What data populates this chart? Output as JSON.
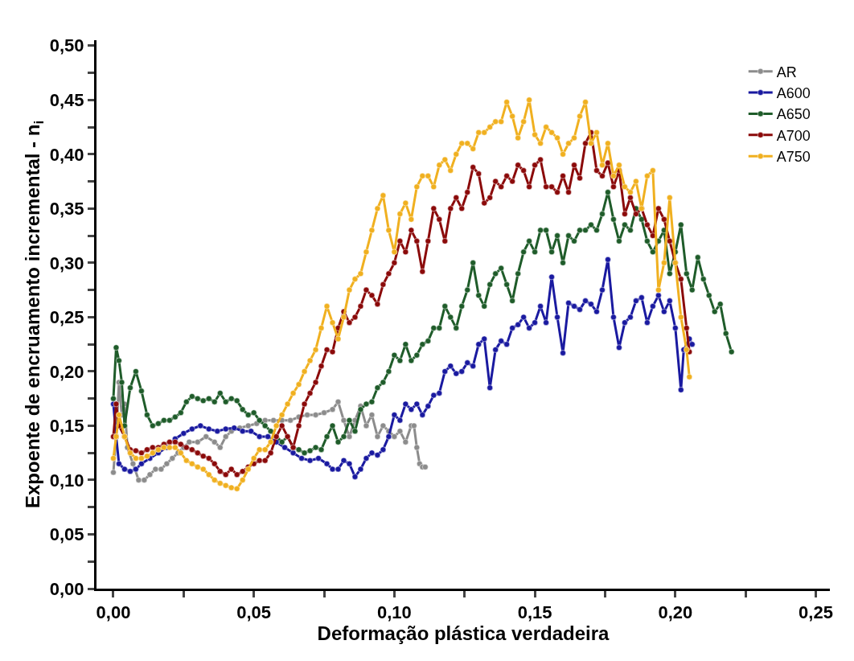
{
  "chart_data": {
    "type": "line",
    "xlabel": "Deformação plástica verdadeira",
    "ylabel": "Expoente de encruamento incremental - n$_{i}$",
    "xlim": [
      -0.006,
      0.255
    ],
    "ylim": [
      0,
      0.505
    ],
    "xticks": [
      {
        "value": 0,
        "label": "0,00"
      },
      {
        "value": 0.025,
        "label": null
      },
      {
        "value": 0.05,
        "label": "0,05"
      },
      {
        "value": 0.075,
        "label": null
      },
      {
        "value": 0.1,
        "label": "0,10"
      },
      {
        "value": 0.125,
        "label": null
      },
      {
        "value": 0.15,
        "label": "0,15"
      },
      {
        "value": 0.175,
        "label": null
      },
      {
        "value": 0.2,
        "label": "0,20"
      },
      {
        "value": 0.225,
        "label": null
      },
      {
        "value": 0.25,
        "label": "0,25"
      }
    ],
    "yticks": [
      {
        "value": 0,
        "label": "0,00"
      },
      {
        "value": 0.025,
        "label": null
      },
      {
        "value": 0.05,
        "label": "0,05"
      },
      {
        "value": 0.075,
        "label": null
      },
      {
        "value": 0.1,
        "label": "0,10"
      },
      {
        "value": 0.125,
        "label": null
      },
      {
        "value": 0.15,
        "label": "0,15"
      },
      {
        "value": 0.175,
        "label": null
      },
      {
        "value": 0.2,
        "label": "0,20"
      },
      {
        "value": 0.225,
        "label": null
      },
      {
        "value": 0.25,
        "label": "0,25"
      },
      {
        "value": 0.275,
        "label": null
      },
      {
        "value": 0.3,
        "label": "0,30"
      },
      {
        "value": 0.325,
        "label": null
      },
      {
        "value": 0.35,
        "label": "0,35"
      },
      {
        "value": 0.375,
        "label": null
      },
      {
        "value": 0.4,
        "label": "0,40"
      },
      {
        "value": 0.425,
        "label": null
      },
      {
        "value": 0.45,
        "label": "0,45"
      },
      {
        "value": 0.475,
        "label": null
      },
      {
        "value": 0.5,
        "label": "0,50"
      }
    ],
    "legend": "top right",
    "marker": "circle",
    "line_style": "solid",
    "series": [
      {
        "name": "AR",
        "color": "#8c8c8c",
        "x": [
          0.0,
          0.001,
          0.002,
          0.003,
          0.004,
          0.005,
          0.007,
          0.009,
          0.011,
          0.013,
          0.015,
          0.017,
          0.019,
          0.021,
          0.023,
          0.025,
          0.027,
          0.03,
          0.033,
          0.036,
          0.038,
          0.04,
          0.042,
          0.045,
          0.048,
          0.051,
          0.054,
          0.057,
          0.06,
          0.063,
          0.066,
          0.069,
          0.072,
          0.075,
          0.078,
          0.08,
          0.082,
          0.084,
          0.086,
          0.088,
          0.09,
          0.092,
          0.094,
          0.096,
          0.098,
          0.1,
          0.102,
          0.104,
          0.106,
          0.107,
          0.108,
          0.109,
          0.11,
          0.111
        ],
        "values": [
          0.107,
          0.14,
          0.19,
          0.16,
          0.17,
          0.13,
          0.115,
          0.1,
          0.1,
          0.105,
          0.11,
          0.11,
          0.115,
          0.12,
          0.125,
          0.13,
          0.135,
          0.135,
          0.14,
          0.135,
          0.13,
          0.14,
          0.145,
          0.148,
          0.15,
          0.152,
          0.155,
          0.155,
          0.155,
          0.155,
          0.158,
          0.16,
          0.16,
          0.162,
          0.165,
          0.172,
          0.155,
          0.14,
          0.155,
          0.168,
          0.15,
          0.16,
          0.14,
          0.15,
          0.145,
          0.14,
          0.145,
          0.135,
          0.15,
          0.15,
          0.13,
          0.115,
          0.112,
          0.112
        ]
      },
      {
        "name": "A600",
        "color": "#1a1aa0",
        "x": [
          0.0,
          0.001,
          0.002,
          0.004,
          0.006,
          0.008,
          0.01,
          0.013,
          0.016,
          0.019,
          0.022,
          0.025,
          0.028,
          0.031,
          0.034,
          0.037,
          0.04,
          0.043,
          0.046,
          0.049,
          0.052,
          0.055,
          0.058,
          0.061,
          0.064,
          0.067,
          0.07,
          0.073,
          0.076,
          0.078,
          0.08,
          0.082,
          0.084,
          0.086,
          0.088,
          0.09,
          0.092,
          0.094,
          0.096,
          0.098,
          0.1,
          0.102,
          0.104,
          0.106,
          0.108,
          0.11,
          0.112,
          0.114,
          0.116,
          0.118,
          0.12,
          0.122,
          0.124,
          0.126,
          0.128,
          0.13,
          0.132,
          0.134,
          0.136,
          0.138,
          0.14,
          0.142,
          0.144,
          0.146,
          0.148,
          0.15,
          0.152,
          0.154,
          0.156,
          0.158,
          0.16,
          0.162,
          0.164,
          0.166,
          0.168,
          0.17,
          0.172,
          0.174,
          0.176,
          0.178,
          0.18,
          0.182,
          0.184,
          0.186,
          0.188,
          0.19,
          0.192,
          0.194,
          0.196,
          0.198,
          0.2,
          0.202,
          0.203,
          0.205,
          0.206
        ],
        "values": [
          0.17,
          0.14,
          0.115,
          0.11,
          0.108,
          0.11,
          0.115,
          0.12,
          0.125,
          0.13,
          0.138,
          0.143,
          0.147,
          0.15,
          0.147,
          0.145,
          0.147,
          0.148,
          0.145,
          0.145,
          0.14,
          0.14,
          0.135,
          0.13,
          0.125,
          0.12,
          0.118,
          0.12,
          0.115,
          0.11,
          0.11,
          0.118,
          0.115,
          0.103,
          0.11,
          0.12,
          0.125,
          0.123,
          0.128,
          0.14,
          0.16,
          0.155,
          0.17,
          0.165,
          0.17,
          0.16,
          0.168,
          0.178,
          0.18,
          0.2,
          0.205,
          0.198,
          0.2,
          0.208,
          0.205,
          0.225,
          0.23,
          0.185,
          0.22,
          0.228,
          0.225,
          0.24,
          0.243,
          0.25,
          0.24,
          0.245,
          0.26,
          0.245,
          0.287,
          0.25,
          0.217,
          0.263,
          0.26,
          0.257,
          0.265,
          0.262,
          0.255,
          0.275,
          0.303,
          0.25,
          0.222,
          0.245,
          0.25,
          0.265,
          0.268,
          0.245,
          0.26,
          0.27,
          0.255,
          0.265,
          0.24,
          0.183,
          0.22,
          0.23,
          0.225
        ]
      },
      {
        "name": "A650",
        "color": "#1f5c2a",
        "x": [
          0.0,
          0.001,
          0.002,
          0.003,
          0.004,
          0.006,
          0.008,
          0.01,
          0.012,
          0.014,
          0.016,
          0.018,
          0.02,
          0.022,
          0.024,
          0.026,
          0.028,
          0.03,
          0.032,
          0.034,
          0.036,
          0.038,
          0.04,
          0.042,
          0.044,
          0.046,
          0.048,
          0.05,
          0.052,
          0.054,
          0.056,
          0.058,
          0.06,
          0.062,
          0.064,
          0.066,
          0.068,
          0.07,
          0.072,
          0.074,
          0.076,
          0.078,
          0.08,
          0.082,
          0.084,
          0.086,
          0.088,
          0.09,
          0.092,
          0.094,
          0.096,
          0.098,
          0.1,
          0.102,
          0.104,
          0.106,
          0.108,
          0.11,
          0.112,
          0.114,
          0.116,
          0.118,
          0.12,
          0.122,
          0.124,
          0.126,
          0.128,
          0.13,
          0.132,
          0.134,
          0.136,
          0.138,
          0.14,
          0.142,
          0.144,
          0.146,
          0.148,
          0.15,
          0.152,
          0.154,
          0.156,
          0.158,
          0.16,
          0.162,
          0.164,
          0.166,
          0.168,
          0.17,
          0.172,
          0.174,
          0.176,
          0.178,
          0.18,
          0.182,
          0.184,
          0.186,
          0.188,
          0.19,
          0.192,
          0.194,
          0.196,
          0.198,
          0.2,
          0.202,
          0.204,
          0.206,
          0.208,
          0.21,
          0.212,
          0.214,
          0.216,
          0.218,
          0.22
        ],
        "values": [
          0.175,
          0.222,
          0.21,
          0.19,
          0.15,
          0.185,
          0.2,
          0.182,
          0.16,
          0.15,
          0.152,
          0.155,
          0.155,
          0.158,
          0.162,
          0.172,
          0.177,
          0.175,
          0.173,
          0.175,
          0.172,
          0.18,
          0.172,
          0.175,
          0.173,
          0.165,
          0.16,
          0.162,
          0.155,
          0.15,
          0.145,
          0.14,
          0.135,
          0.14,
          0.13,
          0.128,
          0.125,
          0.127,
          0.13,
          0.128,
          0.14,
          0.15,
          0.135,
          0.14,
          0.155,
          0.145,
          0.165,
          0.17,
          0.172,
          0.185,
          0.19,
          0.2,
          0.215,
          0.21,
          0.225,
          0.21,
          0.215,
          0.225,
          0.228,
          0.24,
          0.24,
          0.26,
          0.25,
          0.24,
          0.26,
          0.275,
          0.3,
          0.27,
          0.26,
          0.28,
          0.29,
          0.295,
          0.28,
          0.265,
          0.29,
          0.31,
          0.32,
          0.31,
          0.33,
          0.33,
          0.31,
          0.325,
          0.3,
          0.325,
          0.32,
          0.33,
          0.33,
          0.335,
          0.33,
          0.345,
          0.365,
          0.34,
          0.32,
          0.335,
          0.33,
          0.35,
          0.34,
          0.32,
          0.31,
          0.32,
          0.33,
          0.29,
          0.31,
          0.335,
          0.29,
          0.275,
          0.305,
          0.285,
          0.27,
          0.255,
          0.262,
          0.235,
          0.218
        ]
      },
      {
        "name": "A700",
        "color": "#8b0a0a",
        "x": [
          0.0,
          0.001,
          0.002,
          0.004,
          0.006,
          0.008,
          0.01,
          0.012,
          0.014,
          0.016,
          0.018,
          0.02,
          0.022,
          0.024,
          0.026,
          0.028,
          0.03,
          0.032,
          0.034,
          0.036,
          0.038,
          0.04,
          0.042,
          0.044,
          0.046,
          0.048,
          0.05,
          0.052,
          0.054,
          0.056,
          0.058,
          0.06,
          0.062,
          0.064,
          0.066,
          0.068,
          0.07,
          0.072,
          0.074,
          0.076,
          0.078,
          0.08,
          0.082,
          0.084,
          0.086,
          0.088,
          0.09,
          0.092,
          0.094,
          0.096,
          0.098,
          0.1,
          0.102,
          0.104,
          0.106,
          0.108,
          0.11,
          0.112,
          0.114,
          0.116,
          0.118,
          0.12,
          0.122,
          0.124,
          0.126,
          0.128,
          0.13,
          0.132,
          0.134,
          0.136,
          0.138,
          0.14,
          0.142,
          0.144,
          0.146,
          0.148,
          0.15,
          0.152,
          0.154,
          0.156,
          0.158,
          0.16,
          0.162,
          0.164,
          0.166,
          0.168,
          0.17,
          0.172,
          0.174,
          0.176,
          0.178,
          0.18,
          0.182,
          0.184,
          0.186,
          0.188,
          0.19,
          0.192,
          0.194,
          0.196,
          0.198,
          0.2,
          0.202,
          0.204,
          0.205
        ],
        "values": [
          0.14,
          0.17,
          0.15,
          0.14,
          0.128,
          0.127,
          0.125,
          0.128,
          0.13,
          0.13,
          0.133,
          0.135,
          0.135,
          0.133,
          0.13,
          0.128,
          0.125,
          0.122,
          0.12,
          0.115,
          0.108,
          0.105,
          0.11,
          0.105,
          0.108,
          0.112,
          0.115,
          0.118,
          0.118,
          0.125,
          0.14,
          0.15,
          0.14,
          0.13,
          0.15,
          0.17,
          0.18,
          0.19,
          0.205,
          0.22,
          0.218,
          0.24,
          0.255,
          0.245,
          0.25,
          0.26,
          0.275,
          0.27,
          0.262,
          0.28,
          0.29,
          0.3,
          0.32,
          0.31,
          0.33,
          0.32,
          0.292,
          0.32,
          0.35,
          0.34,
          0.32,
          0.35,
          0.36,
          0.35,
          0.365,
          0.388,
          0.382,
          0.355,
          0.36,
          0.375,
          0.37,
          0.38,
          0.375,
          0.39,
          0.385,
          0.37,
          0.39,
          0.395,
          0.37,
          0.37,
          0.365,
          0.38,
          0.365,
          0.39,
          0.378,
          0.41,
          0.42,
          0.385,
          0.38,
          0.392,
          0.37,
          0.385,
          0.345,
          0.36,
          0.345,
          0.35,
          0.335,
          0.325,
          0.35,
          0.34,
          0.32,
          0.3,
          0.285,
          0.24,
          0.218
        ]
      },
      {
        "name": "A750",
        "color": "#f0b020",
        "x": [
          0.0,
          0.001,
          0.002,
          0.004,
          0.006,
          0.008,
          0.01,
          0.012,
          0.014,
          0.016,
          0.018,
          0.02,
          0.022,
          0.024,
          0.026,
          0.028,
          0.03,
          0.032,
          0.034,
          0.036,
          0.038,
          0.04,
          0.042,
          0.044,
          0.046,
          0.048,
          0.05,
          0.052,
          0.054,
          0.056,
          0.058,
          0.06,
          0.062,
          0.064,
          0.066,
          0.068,
          0.07,
          0.072,
          0.074,
          0.076,
          0.078,
          0.08,
          0.082,
          0.084,
          0.086,
          0.088,
          0.09,
          0.092,
          0.094,
          0.096,
          0.098,
          0.1,
          0.102,
          0.104,
          0.106,
          0.108,
          0.11,
          0.112,
          0.114,
          0.116,
          0.118,
          0.12,
          0.122,
          0.124,
          0.126,
          0.128,
          0.13,
          0.132,
          0.134,
          0.136,
          0.138,
          0.14,
          0.142,
          0.144,
          0.146,
          0.148,
          0.15,
          0.152,
          0.154,
          0.156,
          0.158,
          0.16,
          0.162,
          0.164,
          0.166,
          0.168,
          0.17,
          0.172,
          0.174,
          0.176,
          0.178,
          0.18,
          0.182,
          0.184,
          0.186,
          0.188,
          0.19,
          0.192,
          0.194,
          0.196,
          0.198,
          0.2,
          0.202,
          0.204,
          0.205
        ],
        "values": [
          0.12,
          0.14,
          0.16,
          0.14,
          0.125,
          0.12,
          0.12,
          0.122,
          0.125,
          0.128,
          0.13,
          0.13,
          0.13,
          0.125,
          0.118,
          0.115,
          0.112,
          0.11,
          0.105,
          0.1,
          0.097,
          0.095,
          0.093,
          0.092,
          0.1,
          0.11,
          0.12,
          0.128,
          0.128,
          0.135,
          0.15,
          0.16,
          0.17,
          0.18,
          0.188,
          0.2,
          0.21,
          0.22,
          0.24,
          0.26,
          0.245,
          0.23,
          0.25,
          0.275,
          0.285,
          0.29,
          0.31,
          0.33,
          0.35,
          0.362,
          0.33,
          0.31,
          0.345,
          0.355,
          0.34,
          0.37,
          0.38,
          0.38,
          0.37,
          0.39,
          0.395,
          0.385,
          0.4,
          0.41,
          0.41,
          0.405,
          0.42,
          0.42,
          0.425,
          0.43,
          0.43,
          0.448,
          0.435,
          0.415,
          0.43,
          0.45,
          0.418,
          0.41,
          0.425,
          0.42,
          0.415,
          0.4,
          0.41,
          0.415,
          0.435,
          0.448,
          0.41,
          0.42,
          0.39,
          0.41,
          0.38,
          0.39,
          0.37,
          0.365,
          0.375,
          0.35,
          0.38,
          0.385,
          0.275,
          0.3,
          0.36,
          0.3,
          0.25,
          0.22,
          0.195
        ]
      }
    ]
  }
}
